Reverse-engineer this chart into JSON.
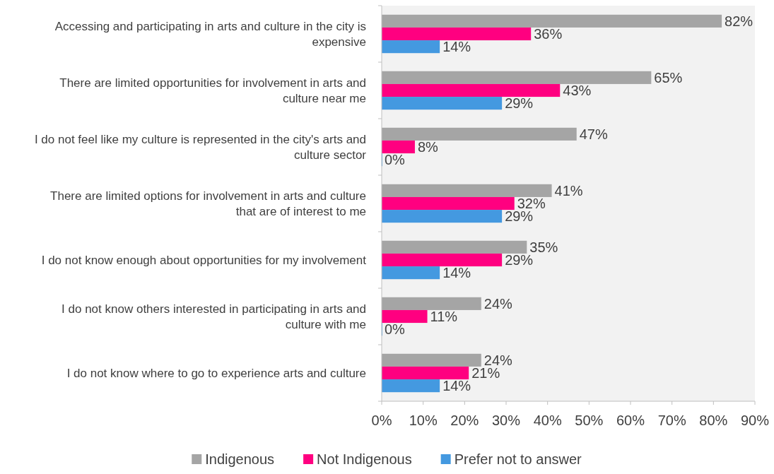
{
  "chart_data": {
    "type": "bar",
    "orientation": "horizontal",
    "categories": [
      "Accessing and participating in arts and culture in the city is expensive",
      "There are limited opportunities for involvement in arts and culture near me",
      "I do not feel like my culture is represented in the city's arts and culture sector",
      "There are limited options for involvement in arts and culture that are of interest to me",
      "I do not know enough about opportunities for my involvement",
      "I do not know others interested in participating in arts and culture with me",
      "I do not know where to go to experience arts and culture"
    ],
    "series": [
      {
        "name": "Indigenous",
        "color": "#a5a5a5",
        "values": [
          82,
          65,
          47,
          41,
          35,
          24,
          24
        ],
        "value_labels": [
          "82%",
          "65%",
          "47%",
          "41%",
          "35%",
          "24%",
          "24%"
        ]
      },
      {
        "name": "Not Indigenous",
        "color": "#ff0080",
        "values": [
          36,
          43,
          8,
          32,
          29,
          11,
          21
        ],
        "value_labels": [
          "36%",
          "43%",
          "8%",
          "32%",
          "29%",
          "11%",
          "21%"
        ]
      },
      {
        "name": "Prefer not to answer",
        "color": "#4499e0",
        "values": [
          14,
          29,
          0,
          29,
          14,
          0,
          14
        ],
        "value_labels": [
          "14%",
          "29%",
          "0%",
          "29%",
          "14%",
          "0%",
          "14%"
        ]
      }
    ],
    "xlim": [
      0,
      90
    ],
    "xticks": [
      {
        "value": 0,
        "label": "0%"
      },
      {
        "value": 10,
        "label": "10%"
      },
      {
        "value": 20,
        "label": "20%"
      },
      {
        "value": 30,
        "label": "30%"
      },
      {
        "value": 40,
        "label": "40%"
      },
      {
        "value": 50,
        "label": "50%"
      },
      {
        "value": 60,
        "label": "60%"
      },
      {
        "value": 70,
        "label": "70%"
      },
      {
        "value": 80,
        "label": "80%"
      },
      {
        "value": 90,
        "label": "90%"
      }
    ],
    "grid": false,
    "legend": "bottom"
  }
}
